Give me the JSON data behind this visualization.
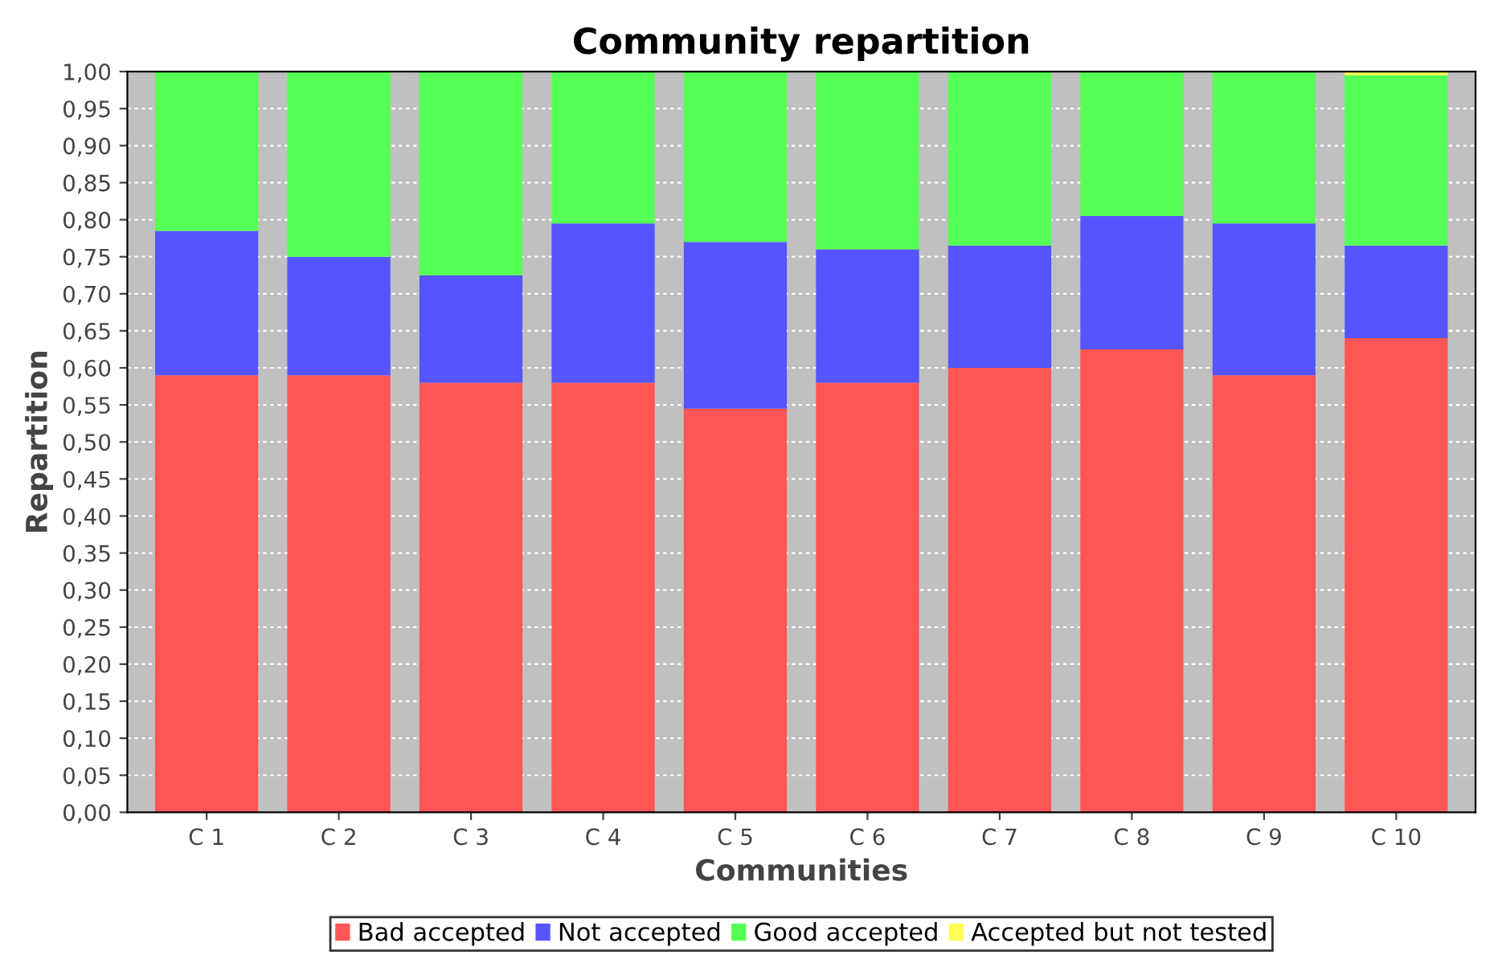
{
  "chart_data": {
    "type": "bar",
    "title": "Community repartition",
    "xlabel": "Communities",
    "ylabel": "Repartition",
    "categories": [
      "C 1",
      "C 2",
      "C 3",
      "C 4",
      "C 5",
      "C 6",
      "C 7",
      "C 8",
      "C 9",
      "C 10"
    ],
    "stacked": true,
    "series": [
      {
        "name": "Bad accepted",
        "color": "#ff5555",
        "values": [
          0.59,
          0.59,
          0.58,
          0.58,
          0.545,
          0.58,
          0.6,
          0.625,
          0.59,
          0.64
        ]
      },
      {
        "name": "Not accepted",
        "color": "#5555ff",
        "values": [
          0.195,
          0.16,
          0.145,
          0.215,
          0.225,
          0.18,
          0.165,
          0.18,
          0.205,
          0.125
        ]
      },
      {
        "name": "Good accepted",
        "color": "#55ff55",
        "values": [
          0.215,
          0.25,
          0.275,
          0.205,
          0.23,
          0.24,
          0.235,
          0.195,
          0.205,
          0.23
        ]
      },
      {
        "name": "Accepted but not tested",
        "color": "#ffff55",
        "values": [
          0,
          0,
          0,
          0,
          0,
          0,
          0,
          0,
          0,
          0.005
        ]
      }
    ],
    "ylim": [
      0,
      1
    ],
    "yticks": [
      {
        "value": 0,
        "label": "0,00"
      },
      {
        "value": 0.05,
        "label": "0,05"
      },
      {
        "value": 0.1,
        "label": "0,10"
      },
      {
        "value": 0.15,
        "label": "0,15"
      },
      {
        "value": 0.2,
        "label": "0,20"
      },
      {
        "value": 0.25,
        "label": "0,25"
      },
      {
        "value": 0.3,
        "label": "0,30"
      },
      {
        "value": 0.35,
        "label": "0,35"
      },
      {
        "value": 0.4,
        "label": "0,40"
      },
      {
        "value": 0.45,
        "label": "0,45"
      },
      {
        "value": 0.5,
        "label": "0,50"
      },
      {
        "value": 0.55,
        "label": "0,55"
      },
      {
        "value": 0.6,
        "label": "0,60"
      },
      {
        "value": 0.65,
        "label": "0,65"
      },
      {
        "value": 0.7,
        "label": "0,70"
      },
      {
        "value": 0.75,
        "label": "0,75"
      },
      {
        "value": 0.8,
        "label": "0,80"
      },
      {
        "value": 0.85,
        "label": "0,85"
      },
      {
        "value": 0.9,
        "label": "0,90"
      },
      {
        "value": 0.95,
        "label": "0,95"
      },
      {
        "value": 1,
        "label": "1,00"
      }
    ],
    "grid": "y",
    "legend": "bottom"
  }
}
